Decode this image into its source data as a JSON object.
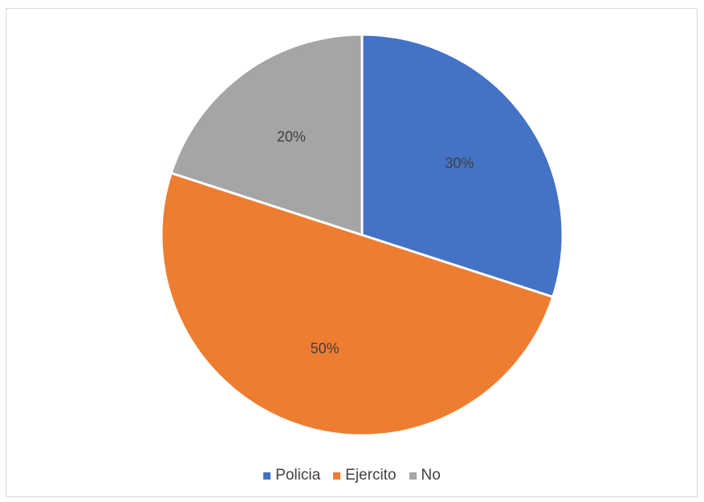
{
  "chart_data": {
    "type": "pie",
    "title": "",
    "categories": [
      "Policia",
      "Ejercito",
      "No"
    ],
    "values": [
      30,
      50,
      20
    ],
    "labels": [
      "30%",
      "50%",
      "20%"
    ],
    "colors": [
      "#4472C4",
      "#ED7D31",
      "#A5A5A5"
    ],
    "legend_position": "bottom",
    "start_angle": "12 o'clock",
    "direction": "clockwise"
  }
}
